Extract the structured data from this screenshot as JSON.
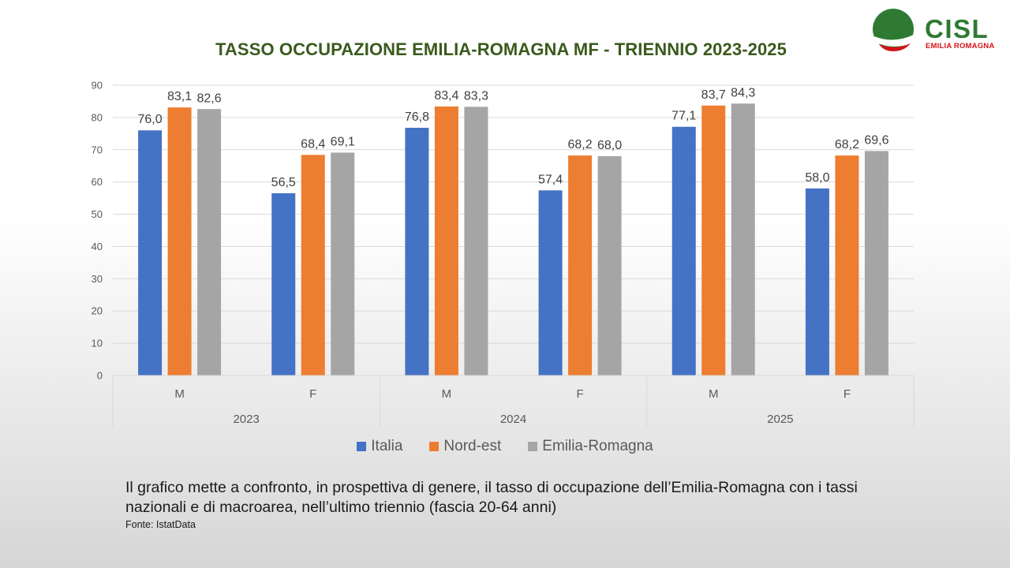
{
  "header": {
    "title": "TASSO OCCUPAZIONE EMILIA-ROMAGNA MF - TRIENNIO 2023-2025"
  },
  "logo": {
    "name": "CISL",
    "region": "EMILIA ROMAGNA",
    "colors": {
      "green": "#2f7a33",
      "red": "#d4141b"
    }
  },
  "chart_data": {
    "type": "bar",
    "title": "TASSO OCCUPAZIONE EMILIA-ROMAGNA MF - TRIENNIO 2023-2025",
    "xlabel": "",
    "ylabel": "",
    "ylim": [
      0,
      90
    ],
    "yticks": [
      0,
      10,
      20,
      30,
      40,
      50,
      60,
      70,
      80,
      90
    ],
    "grid": true,
    "legend_position": "bottom",
    "groups": [
      "2023",
      "2024",
      "2025"
    ],
    "categories": [
      "M",
      "F",
      "M",
      "F",
      "M",
      "F"
    ],
    "series": [
      {
        "name": "Italia",
        "color": "#4472c4",
        "values": [
          76.0,
          56.5,
          76.8,
          57.4,
          77.1,
          58.0
        ],
        "labels": [
          "76,0",
          "56,5",
          "76,8",
          "57,4",
          "77,1",
          "58,0"
        ]
      },
      {
        "name": "Nord-est",
        "color": "#ed7d31",
        "values": [
          83.1,
          68.4,
          83.4,
          68.2,
          83.7,
          68.2
        ],
        "labels": [
          "83,1",
          "68,4",
          "83,4",
          "68,2",
          "83,7",
          "68,2"
        ]
      },
      {
        "name": "Emilia-Romagna",
        "color": "#a5a5a5",
        "values": [
          82.6,
          69.1,
          83.3,
          68.0,
          84.3,
          69.6
        ],
        "labels": [
          "82,6",
          "69,1",
          "83,3",
          "68,0",
          "84,3",
          "69,6"
        ]
      }
    ]
  },
  "caption": "Il grafico mette a confronto, in prospettiva di genere, il tasso di occupazione dell’Emilia-Romagna con i tassi nazionali e di macroarea, nell’ultimo triennio (fascia 20-64 anni)",
  "source": "Fonte: IstatData"
}
